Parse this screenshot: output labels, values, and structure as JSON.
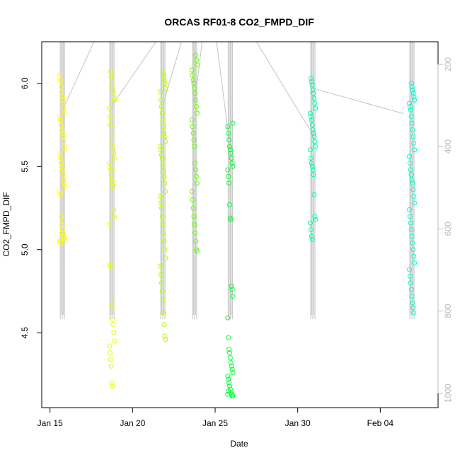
{
  "chart_data": {
    "type": "scatter",
    "title": "ORCAS RF01-8 CO2_FMPD_DIF",
    "xlabel": "Date",
    "ylabel": "CO2_FMPD_DIF",
    "xlim": [
      "2016-01-14T12:00",
      "2016-02-07T12:00"
    ],
    "ylim": [
      4.05,
      6.25
    ],
    "y2lim": [
      1035,
      145
    ],
    "x_ticks": [
      {
        "date": "2016-01-15",
        "label": "Jan 15"
      },
      {
        "date": "2016-01-20",
        "label": "Jan 20"
      },
      {
        "date": "2016-01-25",
        "label": "Jan 25"
      },
      {
        "date": "2016-01-30",
        "label": "Jan 30"
      },
      {
        "date": "2016-02-04",
        "label": "Feb 04"
      }
    ],
    "y_ticks": [
      4.5,
      5.0,
      5.5,
      6.0
    ],
    "y_tick_labels": [
      "4.5",
      "5.0",
      "5.5",
      "6.0"
    ],
    "y2_ticks": [
      200,
      400,
      600,
      800,
      1000
    ],
    "y2_tick_labels": [
      "200",
      "400",
      "600",
      "800",
      "1000"
    ],
    "grid": false,
    "legend": "none",
    "colors": {
      "pressure_trace": "#c4c4c4",
      "RF01": "#ffff00",
      "RF02": "#e6ff00",
      "RF03": "#b3ff00",
      "RF04": "#66ff00",
      "RF05": "#00ff33",
      "RF06": "#00ffa0",
      "RF07": "#00ffd0"
    },
    "series": [
      {
        "color_key": "RF01",
        "x": "2016-01-15T18:00",
        "y": [
          6.05,
          6.02,
          5.98,
          5.95,
          5.92,
          5.9,
          5.88,
          5.85,
          5.82,
          5.8,
          5.78,
          5.75,
          5.72,
          5.7,
          5.68,
          5.65,
          5.62,
          5.6,
          5.58,
          5.55,
          5.52,
          5.5,
          5.48,
          5.45,
          5.42,
          5.4,
          5.38,
          5.35,
          5.33,
          5.2,
          5.15,
          5.12,
          5.1,
          5.08,
          5.07,
          5.06,
          5.05,
          5.05,
          5.04,
          5.1
        ]
      },
      {
        "color_key": "RF02",
        "x": "2016-01-18T18:00",
        "y": [
          6.07,
          6.04,
          6.0,
          5.97,
          5.95,
          5.92,
          5.9,
          5.85,
          5.8,
          5.75,
          5.7,
          5.65,
          5.62,
          5.6,
          5.58,
          5.55,
          5.52,
          5.5,
          5.48,
          5.45,
          5.42,
          5.4,
          5.38,
          5.24,
          5.2,
          5.15,
          4.91,
          4.9,
          4.7,
          4.66,
          4.58,
          4.55,
          4.5,
          4.45,
          4.42,
          4.38,
          4.34,
          4.3,
          4.2,
          4.18
        ]
      },
      {
        "color_key": "RF03",
        "x": "2016-01-21T20:00",
        "y": [
          6.07,
          6.05,
          6.02,
          6.0,
          5.97,
          5.95,
          5.9,
          5.86,
          5.82,
          5.78,
          5.74,
          5.7,
          5.68,
          5.65,
          5.62,
          5.6,
          5.57,
          5.55,
          5.5,
          5.47,
          5.44,
          5.4,
          5.35,
          5.32,
          5.28,
          5.25,
          5.2,
          5.15,
          5.1,
          5.05,
          5.0,
          4.95,
          4.9,
          4.85,
          4.8,
          4.75,
          4.7,
          4.62,
          4.55,
          4.48,
          4.46
        ]
      },
      {
        "color_key": "RF04",
        "x": "2016-01-23T18:00",
        "y": [
          6.17,
          6.14,
          6.11,
          6.08,
          6.05,
          6.02,
          6.0,
          5.97,
          5.94,
          5.9,
          5.86,
          5.82,
          5.78,
          5.74,
          5.7,
          5.66,
          5.62,
          5.52,
          5.48,
          5.44,
          5.4,
          5.35,
          5.3,
          5.25,
          5.2,
          5.15,
          5.1,
          5.05,
          5.0,
          4.99
        ]
      },
      {
        "color_key": "RF05",
        "x": "2016-01-25T22:00",
        "y": [
          5.76,
          5.74,
          5.7,
          5.66,
          5.62,
          5.6,
          5.58,
          5.55,
          5.52,
          5.5,
          5.48,
          5.44,
          5.4,
          5.27,
          5.19,
          5.18,
          4.78,
          4.76,
          4.72,
          4.59,
          4.47,
          4.4,
          4.38,
          4.35,
          4.32,
          4.3,
          4.28,
          4.26,
          4.24,
          4.22,
          4.2,
          4.18,
          4.16,
          4.14,
          4.13,
          4.12,
          4.12,
          4.13,
          4.15
        ]
      },
      {
        "color_key": "RF06",
        "x": "2016-01-30T22:00",
        "y": [
          6.03,
          6.01,
          5.99,
          5.96,
          5.94,
          5.91,
          5.88,
          5.85,
          5.82,
          5.8,
          5.78,
          5.75,
          5.72,
          5.7,
          5.68,
          5.65,
          5.62,
          5.6,
          5.55,
          5.52,
          5.5,
          5.48,
          5.45,
          5.33,
          5.2,
          5.18,
          5.16,
          5.12,
          5.08,
          5.06
        ]
      },
      {
        "color_key": "RF07",
        "x": "2016-02-05T22:00",
        "y": [
          6.0,
          5.98,
          5.96,
          5.94,
          5.92,
          5.9,
          5.88,
          5.86,
          5.84,
          5.8,
          5.76,
          5.72,
          5.68,
          5.64,
          5.6,
          5.56,
          5.52,
          5.48,
          5.45,
          5.42,
          5.4,
          5.36,
          5.32,
          5.28,
          5.24,
          5.2,
          5.16,
          5.12,
          5.08,
          5.04,
          5.0,
          4.96,
          4.92,
          4.88,
          4.84,
          4.8,
          4.76,
          4.72,
          4.68,
          4.65,
          4.62
        ]
      }
    ],
    "pressure_trace": {
      "color_key": "pressure_trace",
      "flights": [
        {
          "x": "2016-01-15T18:00",
          "p_min": 145,
          "p_max": 820
        },
        {
          "x": "2016-01-18T18:00",
          "p_min": 145,
          "p_max": 820
        },
        {
          "x": "2016-01-21T20:00",
          "p_min": 145,
          "p_max": 820
        },
        {
          "x": "2016-01-23T18:00",
          "p_min": 145,
          "p_max": 820
        },
        {
          "x": "2016-01-25T22:00",
          "p_min": 145,
          "p_max": 820
        },
        {
          "x": "2016-01-30T22:00",
          "p_min": 145,
          "p_max": 820
        },
        {
          "x": "2016-02-05T22:00",
          "p_min": 145,
          "p_max": 820
        }
      ],
      "connectors": [
        {
          "from": [
            "2016-01-15T18:00",
            312
          ],
          "to": [
            "2016-01-17T16:00",
            145
          ]
        },
        {
          "from": [
            "2016-01-18T18:00",
            300
          ],
          "to": [
            "2016-01-21T10:00",
            145
          ]
        },
        {
          "from": [
            "2016-01-21T20:00",
            300
          ],
          "to": [
            "2016-01-22T23:00",
            145
          ]
        },
        {
          "from": [
            "2016-01-23T18:00",
            300
          ],
          "to": [
            "2016-01-24T05:00",
            145
          ]
        },
        {
          "from": [
            "2016-01-25T22:00",
            405
          ],
          "to": [
            "2016-01-25T02:00",
            145
          ]
        },
        {
          "from": [
            "2016-01-27T12:00",
            145
          ],
          "to": [
            "2016-01-30T18:00",
            360
          ]
        },
        {
          "from": [
            "2016-01-31T02:00",
            260
          ],
          "to": [
            "2016-02-05T10:00",
            320
          ]
        }
      ]
    }
  }
}
